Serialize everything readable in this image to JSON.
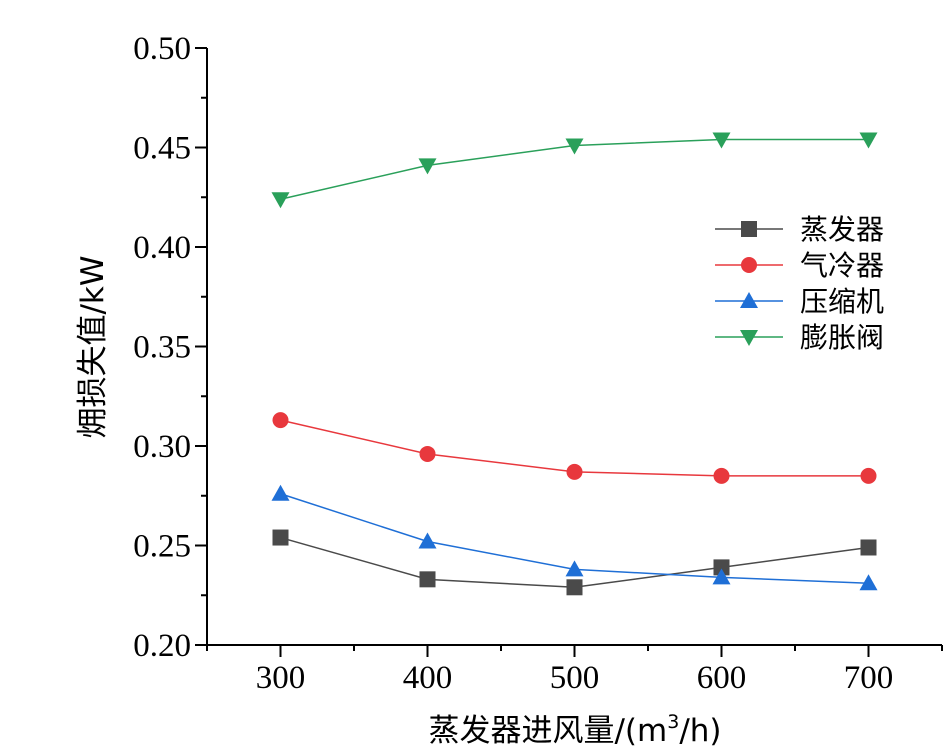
{
  "chart_data": {
    "type": "line",
    "title": "",
    "xlabel": "蒸发器进风量/(m",
    "xlabel_sup": "3",
    "xlabel_tail": "/h)",
    "ylabel": "㶲损失值/kW",
    "x": [
      300,
      400,
      500,
      600,
      700
    ],
    "x_ticks": [
      "300",
      "400",
      "500",
      "600",
      "700"
    ],
    "y_ticks": [
      "0.20",
      "0.25",
      "0.30",
      "0.35",
      "0.40",
      "0.45",
      "0.50"
    ],
    "xlim": [
      250,
      750
    ],
    "ylim": [
      0.2,
      0.5
    ],
    "grid": false,
    "legend_position": "right",
    "series": [
      {
        "name": "蒸发器",
        "color": "#4a4a4a",
        "marker": "square",
        "values": [
          0.254,
          0.233,
          0.229,
          0.239,
          0.249
        ]
      },
      {
        "name": "气冷器",
        "color": "#e8383d",
        "marker": "circle",
        "values": [
          0.313,
          0.296,
          0.287,
          0.285,
          0.285
        ]
      },
      {
        "name": "压缩机",
        "color": "#1f6fd6",
        "marker": "triangle-up",
        "values": [
          0.276,
          0.252,
          0.238,
          0.234,
          0.231
        ]
      },
      {
        "name": "膨胀阀",
        "color": "#2aa05a",
        "marker": "triangle-down",
        "values": [
          0.424,
          0.441,
          0.451,
          0.454,
          0.454
        ]
      }
    ]
  }
}
